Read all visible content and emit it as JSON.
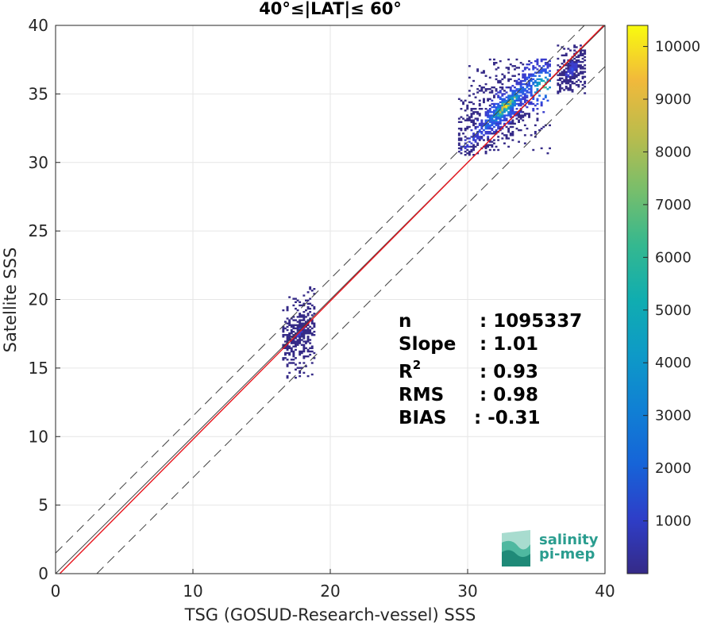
{
  "chart_data": {
    "type": "heatmap",
    "title": "40°≤|LAT|≤ 60°",
    "xlabel": "TSG (GOSUD-Research-vessel) SSS",
    "ylabel": "Satellite SSS",
    "xlim": [
      0,
      40
    ],
    "ylim": [
      0,
      40
    ],
    "x_ticks": [
      0,
      10,
      20,
      30,
      40
    ],
    "y_ticks": [
      0,
      5,
      10,
      15,
      20,
      25,
      30,
      35,
      40
    ],
    "grid": true,
    "colorbar": {
      "range": [
        0,
        10400
      ],
      "ticks": [
        1000,
        2000,
        3000,
        4000,
        5000,
        6000,
        7000,
        8000,
        9000,
        10000
      ],
      "colormap": "parula"
    },
    "lines": [
      {
        "kind": "identity",
        "slope": 1,
        "intercept": 0,
        "color": "#404040",
        "style": "solid"
      },
      {
        "kind": "fit",
        "slope": 1.01,
        "intercept": -0.31,
        "color": "#e8141c",
        "style": "solid"
      },
      {
        "kind": "upper-bound",
        "slope": 1,
        "intercept": 1.5,
        "color": "#404040",
        "style": "dashed"
      },
      {
        "kind": "lower-bound",
        "slope": 1,
        "intercept": -3.0,
        "color": "#404040",
        "style": "dashed"
      }
    ],
    "clusters": [
      {
        "x": [
          29.3,
          36.0
        ],
        "y": [
          30.5,
          37.5
        ],
        "peak": 10000
      },
      {
        "x": [
          36.5,
          38.5
        ],
        "y": [
          35.0,
          38.5
        ],
        "peak": 2500
      },
      {
        "x": [
          16.5,
          18.8
        ],
        "y": [
          14.0,
          21.0
        ],
        "peak": 1500
      }
    ],
    "stats": {
      "n": {
        "label": "n",
        "value": ": 1095337"
      },
      "slope": {
        "label": "Slope",
        "value": ": 1.01"
      },
      "r2": {
        "label": "R",
        "sup": "2",
        "value": ": 0.93"
      },
      "rms": {
        "label": "RMS",
        "value": ": 0.98"
      },
      "bias": {
        "label": "BIAS",
        "value": ": -0.31"
      }
    }
  },
  "logo": {
    "line1": "salinity",
    "line2": "pi-mep"
  }
}
